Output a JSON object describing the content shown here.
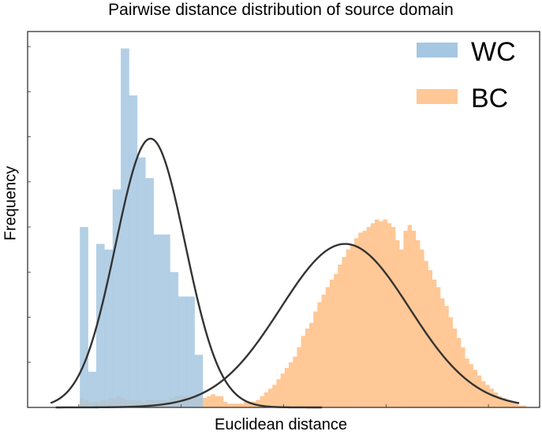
{
  "chart_data": {
    "type": "histogram",
    "title": "Pairwise distance distribution of source domain",
    "xlabel": "Euclidean distance",
    "ylabel": "Frequency",
    "xlim": [
      0,
      100
    ],
    "ylim": [
      0,
      100
    ],
    "x_tick_labels_visible": false,
    "y_tick_labels_visible": false,
    "grid": false,
    "legend_position": "top-right",
    "series": [
      {
        "name": "WC",
        "color": "#a6c7e1",
        "bin_width": 1.6,
        "bins": [
          {
            "x": 10.2,
            "h": 48.0
          },
          {
            "x": 11.8,
            "h": 9.5
          },
          {
            "x": 13.4,
            "h": 43.5
          },
          {
            "x": 15.0,
            "h": 42.0
          },
          {
            "x": 16.6,
            "h": 58.0
          },
          {
            "x": 18.2,
            "h": 95.5
          },
          {
            "x": 19.8,
            "h": 83.0
          },
          {
            "x": 21.4,
            "h": 66.5
          },
          {
            "x": 23.0,
            "h": 61.0
          },
          {
            "x": 24.6,
            "h": 46.0
          },
          {
            "x": 26.2,
            "h": 46.0
          },
          {
            "x": 27.8,
            "h": 36.0
          },
          {
            "x": 29.4,
            "h": 29.5
          },
          {
            "x": 31.0,
            "h": 29.5
          },
          {
            "x": 32.6,
            "h": 14.0
          }
        ]
      },
      {
        "name": "BC",
        "color": "#ffc896",
        "bin_width": 0.8,
        "bins": [
          {
            "x": 10.2,
            "h": 2.5
          },
          {
            "x": 11.0,
            "h": 2.0
          },
          {
            "x": 11.8,
            "h": 1.5
          },
          {
            "x": 12.6,
            "h": 1.5
          },
          {
            "x": 13.4,
            "h": 1.5
          },
          {
            "x": 14.2,
            "h": 2.0
          },
          {
            "x": 15.0,
            "h": 2.0
          },
          {
            "x": 15.8,
            "h": 2.5
          },
          {
            "x": 16.6,
            "h": 2.5
          },
          {
            "x": 17.4,
            "h": 3.0
          },
          {
            "x": 18.2,
            "h": 2.5
          },
          {
            "x": 19.0,
            "h": 2.0
          },
          {
            "x": 19.8,
            "h": 2.0
          },
          {
            "x": 20.6,
            "h": 2.0
          },
          {
            "x": 21.4,
            "h": 2.0
          },
          {
            "x": 22.2,
            "h": 1.5
          },
          {
            "x": 23.0,
            "h": 2.0
          },
          {
            "x": 23.8,
            "h": 2.0
          },
          {
            "x": 24.6,
            "h": 2.0
          },
          {
            "x": 25.4,
            "h": 2.0
          },
          {
            "x": 26.2,
            "h": 2.0
          },
          {
            "x": 27.0,
            "h": 2.0
          },
          {
            "x": 27.8,
            "h": 2.5
          },
          {
            "x": 28.6,
            "h": 3.0
          },
          {
            "x": 29.4,
            "h": 3.0
          },
          {
            "x": 30.2,
            "h": 3.0
          },
          {
            "x": 31.0,
            "h": 3.0
          },
          {
            "x": 31.8,
            "h": 3.0
          },
          {
            "x": 32.6,
            "h": 3.0
          },
          {
            "x": 33.4,
            "h": 2.5
          },
          {
            "x": 34.2,
            "h": 2.5
          },
          {
            "x": 35.0,
            "h": 3.0
          },
          {
            "x": 35.8,
            "h": 3.5
          },
          {
            "x": 36.6,
            "h": 3.0
          },
          {
            "x": 37.4,
            "h": 3.0
          },
          {
            "x": 38.2,
            "h": 1.5
          },
          {
            "x": 39.0,
            "h": 1.0
          },
          {
            "x": 39.8,
            "h": 1.0
          },
          {
            "x": 40.6,
            "h": 1.0
          },
          {
            "x": 41.4,
            "h": 1.0
          },
          {
            "x": 42.2,
            "h": 1.5
          },
          {
            "x": 43.0,
            "h": 1.5
          },
          {
            "x": 43.8,
            "h": 1.5
          },
          {
            "x": 44.6,
            "h": 2.0
          },
          {
            "x": 45.4,
            "h": 3.0
          },
          {
            "x": 46.2,
            "h": 4.0
          },
          {
            "x": 47.0,
            "h": 5.0
          },
          {
            "x": 47.8,
            "h": 6.0
          },
          {
            "x": 48.6,
            "h": 7.5
          },
          {
            "x": 49.4,
            "h": 9.0
          },
          {
            "x": 50.2,
            "h": 10.5
          },
          {
            "x": 51.0,
            "h": 12.0
          },
          {
            "x": 51.8,
            "h": 13.5
          },
          {
            "x": 52.6,
            "h": 16.0
          },
          {
            "x": 53.4,
            "h": 19.0
          },
          {
            "x": 54.2,
            "h": 21.0
          },
          {
            "x": 55.0,
            "h": 22.5
          },
          {
            "x": 55.8,
            "h": 25.5
          },
          {
            "x": 56.6,
            "h": 28.0
          },
          {
            "x": 57.4,
            "h": 30.0
          },
          {
            "x": 58.2,
            "h": 32.0
          },
          {
            "x": 59.0,
            "h": 34.0
          },
          {
            "x": 59.8,
            "h": 35.5
          },
          {
            "x": 60.6,
            "h": 38.0
          },
          {
            "x": 61.4,
            "h": 40.0
          },
          {
            "x": 62.2,
            "h": 42.0
          },
          {
            "x": 63.0,
            "h": 43.5
          },
          {
            "x": 63.8,
            "h": 45.0
          },
          {
            "x": 64.6,
            "h": 46.5
          },
          {
            "x": 65.4,
            "h": 47.0
          },
          {
            "x": 66.2,
            "h": 48.0
          },
          {
            "x": 67.0,
            "h": 49.0
          },
          {
            "x": 67.8,
            "h": 50.0
          },
          {
            "x": 68.6,
            "h": 49.5
          },
          {
            "x": 69.4,
            "h": 50.0
          },
          {
            "x": 70.2,
            "h": 49.0
          },
          {
            "x": 71.0,
            "h": 48.0
          },
          {
            "x": 71.8,
            "h": 44.5
          },
          {
            "x": 72.6,
            "h": 42.0
          },
          {
            "x": 73.4,
            "h": 47.0
          },
          {
            "x": 74.2,
            "h": 48.5
          },
          {
            "x": 75.0,
            "h": 47.0
          },
          {
            "x": 75.8,
            "h": 44.5
          },
          {
            "x": 76.6,
            "h": 42.0
          },
          {
            "x": 77.4,
            "h": 39.0
          },
          {
            "x": 78.2,
            "h": 36.5
          },
          {
            "x": 79.0,
            "h": 34.0
          },
          {
            "x": 79.8,
            "h": 32.0
          },
          {
            "x": 80.6,
            "h": 29.0
          },
          {
            "x": 81.4,
            "h": 27.0
          },
          {
            "x": 82.2,
            "h": 24.0
          },
          {
            "x": 83.0,
            "h": 21.0
          },
          {
            "x": 83.8,
            "h": 18.5
          },
          {
            "x": 84.6,
            "h": 16.0
          },
          {
            "x": 85.4,
            "h": 13.0
          },
          {
            "x": 86.2,
            "h": 11.5
          },
          {
            "x": 87.0,
            "h": 10.0
          },
          {
            "x": 87.8,
            "h": 8.5
          },
          {
            "x": 88.6,
            "h": 7.0
          },
          {
            "x": 89.4,
            "h": 6.0
          },
          {
            "x": 90.2,
            "h": 5.0
          },
          {
            "x": 91.0,
            "h": 4.0
          },
          {
            "x": 91.8,
            "h": 3.0
          },
          {
            "x": 92.6,
            "h": 2.5
          },
          {
            "x": 93.4,
            "h": 2.0
          },
          {
            "x": 94.2,
            "h": 1.5
          },
          {
            "x": 95.0,
            "h": 1.0
          },
          {
            "x": 95.8,
            "h": 0.5
          },
          {
            "x": 96.6,
            "h": 0.5
          }
        ]
      }
    ],
    "fit_curves": [
      {
        "series": "WC",
        "color": "#333333",
        "mean": 24.0,
        "std": 6.8,
        "peak": 71.5,
        "x_range": [
          4.5,
          57.5
        ]
      },
      {
        "series": "BC",
        "color": "#333333",
        "mean": 62.0,
        "std": 12.6,
        "peak": 43.5,
        "x_range": [
          5.5,
          96.0
        ]
      }
    ]
  }
}
